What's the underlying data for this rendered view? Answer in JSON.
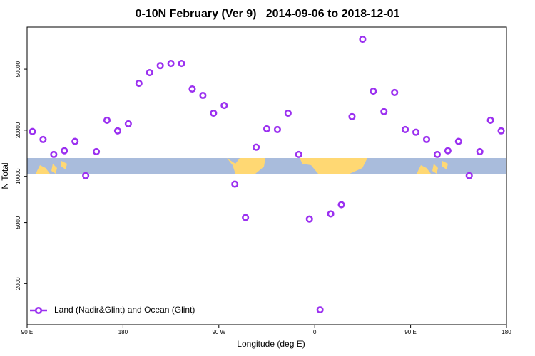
{
  "chart_data": {
    "type": "scatter",
    "title": "0-10N February (Ver 9)   2014-09-06 to 2018-12-01",
    "x_label": "Longitude (deg E)",
    "y_label": "N Total",
    "log_y": true,
    "legend_position": "bottom-left",
    "xlim": [
      90,
      540
    ],
    "xticks": [
      {
        "value": 90,
        "label": "90 E"
      },
      180,
      {
        "value": 270,
        "label": "90 W"
      },
      {
        "value": 360,
        "label": "0"
      },
      {
        "value": 450,
        "label": "90 E"
      },
      {
        "value": 540,
        "label": "180"
      }
    ],
    "ylim": [
      1080,
      94000
    ],
    "yticks": [
      2000,
      5000,
      10000,
      20000,
      50000
    ],
    "series": [
      {
        "name": "Land (Nadir&Glint) and Ocean (Glint)",
        "color": "#9b30f0",
        "x": [
          95,
          105,
          115,
          125,
          135,
          145,
          155,
          165,
          175,
          185,
          195,
          205,
          215,
          225,
          235,
          245,
          255,
          265,
          275,
          285,
          295,
          305,
          315,
          325,
          335,
          345,
          355,
          365,
          375,
          385,
          395,
          405,
          415,
          425,
          435,
          445,
          455,
          465,
          475,
          485,
          495,
          505,
          515,
          525,
          535
        ],
        "values": [
          19600,
          17400,
          13900,
          14700,
          16900,
          10100,
          14500,
          23200,
          19800,
          22000,
          40400,
          47400,
          52700,
          54500,
          54500,
          37100,
          33700,
          25800,
          29000,
          8900,
          5390,
          15500,
          20400,
          20200,
          25800,
          13900,
          5270,
          1350,
          5690,
          6530,
          24500,
          78300,
          35900,
          26400,
          35200,
          20200,
          19400,
          17400,
          13900,
          14700,
          16900,
          10100,
          14500,
          23200,
          19800
        ]
      }
    ]
  }
}
